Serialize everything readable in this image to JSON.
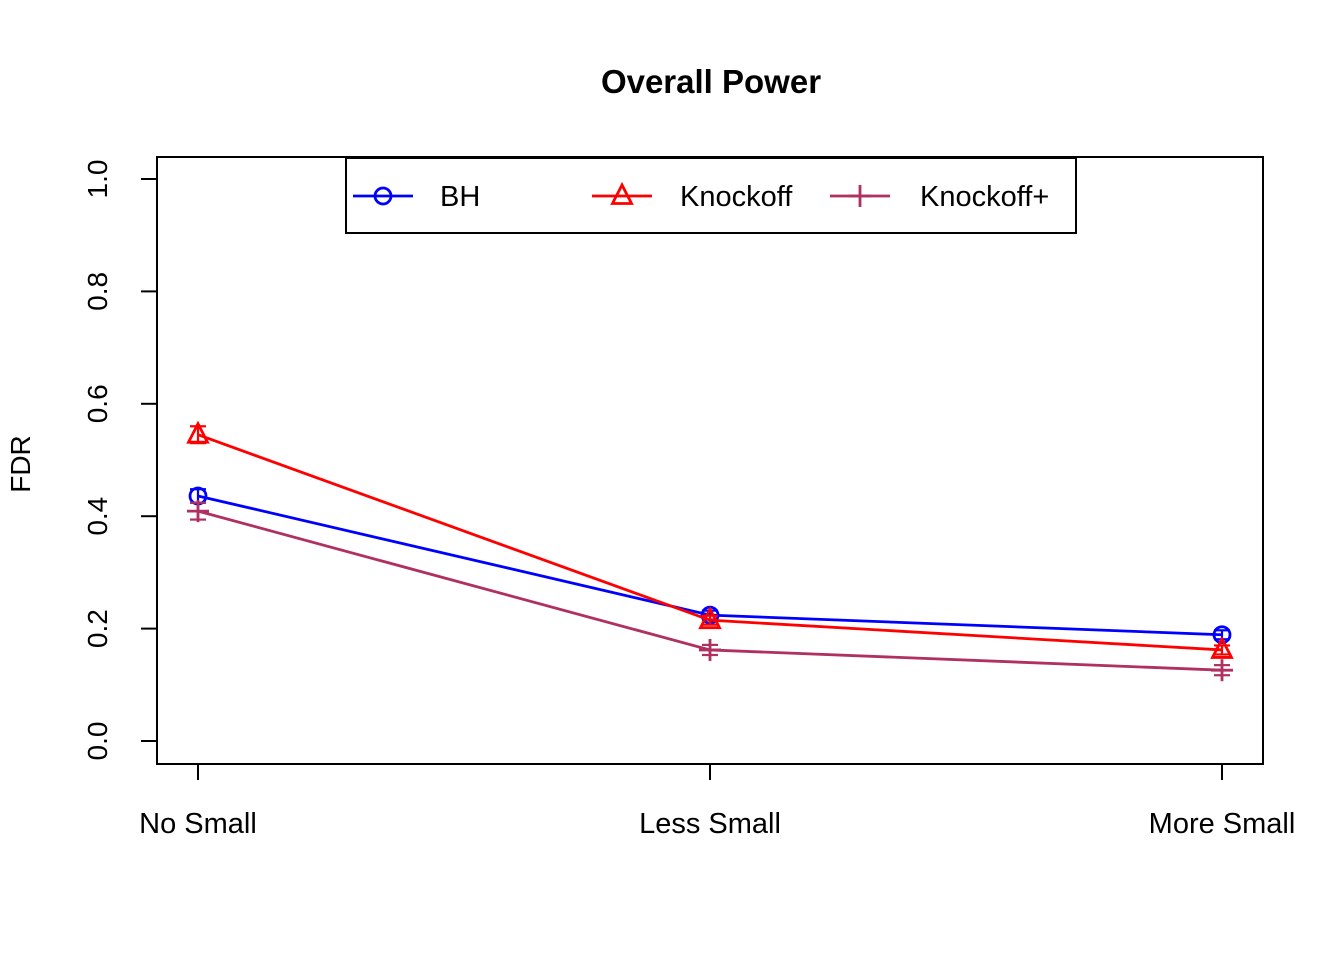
{
  "chart_data": {
    "type": "line",
    "title": "Overall Power",
    "xlabel": "",
    "ylabel": "FDR",
    "categories": [
      "No Small",
      "Less Small",
      "More Small"
    ],
    "yticks": [
      "0.0",
      "0.2",
      "0.4",
      "0.6",
      "0.8",
      "1.0"
    ],
    "ylim": [
      0.0,
      1.0
    ],
    "grid": false,
    "legend_position": "top-inside-box",
    "background": "#ffffff",
    "axis_color": "#000000",
    "series": [
      {
        "name": "BH",
        "color": "#0000ff",
        "marker": "circle",
        "values": [
          0.436,
          0.224,
          0.189
        ],
        "error": [
          0.012,
          0.008,
          0.008
        ]
      },
      {
        "name": "Knockoff",
        "color": "#ff0000",
        "marker": "triangle",
        "values": [
          0.545,
          0.215,
          0.162
        ],
        "error": [
          0.015,
          0.008,
          0.008
        ]
      },
      {
        "name": "Knockoff+",
        "color": "#b03060",
        "marker": "plus",
        "values": [
          0.409,
          0.162,
          0.126
        ],
        "error": [
          0.015,
          0.009,
          0.009
        ]
      }
    ]
  }
}
